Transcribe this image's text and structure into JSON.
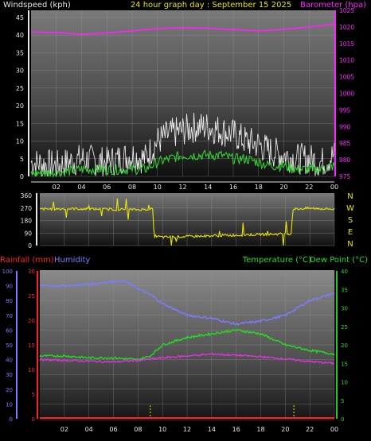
{
  "header": {
    "left_title": "Windspeed (kph)",
    "center_title": "24 hour graph day : September 15 2025",
    "right_title": "Barometer (hpa)"
  },
  "colors": {
    "background": "#000000",
    "wind_gust": "#e6e6e6",
    "wind_avg": "#33cc33",
    "barometer": "#ff22ff",
    "direction": "#e6e600",
    "humidity": "#7b7bff",
    "temperature": "#22dd22",
    "dewpoint": "#dd33dd",
    "rainfall": "#ff2020",
    "axis_left": "#7777ff",
    "axis_right": "#22cc22"
  },
  "compass": [
    "N",
    "W",
    "S",
    "E",
    "N"
  ],
  "bottom_header": {
    "rain_label": "Rainfall (mm)",
    "humidity_label": "Humidity",
    "temp_label": "Temperature (°C)",
    "dew_label": "Dew Point (°C)"
  },
  "chart_data": [
    {
      "type": "line",
      "panel": "wind_barometer",
      "x_ticks": [
        "02",
        "04",
        "06",
        "08",
        "10",
        "12",
        "14",
        "16",
        "18",
        "20",
        "22",
        "00"
      ],
      "y_left_ticks": [
        "0",
        "5",
        "10",
        "15",
        "20",
        "25",
        "30",
        "35",
        "40",
        "45"
      ],
      "y_right_ticks": [
        "975",
        "980",
        "985",
        "990",
        "995",
        "1000",
        "1005",
        "1010",
        "1015",
        "1020",
        "1025"
      ],
      "ylim_left": [
        0,
        47
      ],
      "ylim_right": [
        975,
        1025
      ],
      "series": [
        {
          "name": "Windspeed (kph)",
          "key": "gust",
          "x": [
            0,
            2,
            4,
            6,
            8,
            9,
            10,
            11,
            12,
            13,
            14,
            15,
            16,
            17,
            18,
            19,
            20,
            21,
            22,
            23,
            24
          ],
          "values": [
            4,
            3,
            5,
            4,
            6,
            5,
            10,
            12,
            13,
            14,
            14,
            13,
            12,
            10,
            9,
            7,
            6,
            5,
            5,
            4,
            6
          ]
        },
        {
          "name": "",
          "key": "avg",
          "x": [
            0,
            2,
            4,
            6,
            8,
            9,
            10,
            11,
            12,
            13,
            14,
            15,
            16,
            17,
            18,
            19,
            20,
            21,
            22,
            23,
            24
          ],
          "values": [
            1,
            1,
            2,
            2,
            2,
            2,
            4,
            5,
            6,
            6,
            6,
            6,
            5,
            5,
            4,
            3,
            3,
            2,
            2,
            2,
            3
          ]
        },
        {
          "name": "Barometer (hpa)",
          "key": "baro",
          "x": [
            0,
            2,
            4,
            6,
            8,
            10,
            12,
            14,
            16,
            18,
            20,
            22,
            24
          ],
          "values": [
            1018.5,
            1018.3,
            1017.8,
            1018.2,
            1018.8,
            1019.5,
            1019.8,
            1019.6,
            1019.2,
            1018.8,
            1019.3,
            1020.0,
            1020.8
          ]
        }
      ]
    },
    {
      "type": "line",
      "panel": "wind_direction",
      "y_ticks": [
        "0",
        "90",
        "180",
        "270",
        "360"
      ],
      "ylim": [
        0,
        360
      ],
      "series": [
        {
          "name": "",
          "key": "dir",
          "x": [
            0,
            3,
            6,
            8,
            9.2,
            9.3,
            10,
            12,
            14,
            16,
            18,
            20.5,
            20.6,
            22,
            24
          ],
          "values": [
            262,
            265,
            260,
            258,
            262,
            70,
            60,
            65,
            70,
            75,
            80,
            85,
            262,
            268,
            262
          ]
        }
      ]
    },
    {
      "type": "line",
      "panel": "temp_humidity",
      "y_left_rain_ticks": [
        "0",
        "5",
        "10",
        "15",
        "20",
        "25",
        "30"
      ],
      "y_left_hum_ticks": [
        "0",
        "10",
        "20",
        "30",
        "40",
        "50",
        "60",
        "70",
        "80",
        "90",
        "100"
      ],
      "y_right_ticks": [
        "0",
        "5",
        "10",
        "15",
        "20",
        "25",
        "30",
        "35",
        "40"
      ],
      "ylim_hum": [
        0,
        100
      ],
      "ylim_temp": [
        0,
        40
      ],
      "series": [
        {
          "name": "Humidity",
          "key": "hum",
          "x": [
            0,
            2,
            4,
            6,
            7,
            8,
            9,
            10,
            12,
            14,
            16,
            18,
            20,
            22,
            24
          ],
          "values": [
            90,
            90,
            91,
            93,
            93,
            88,
            84,
            78,
            70,
            68,
            64,
            66,
            70,
            80,
            85
          ]
        },
        {
          "name": "Temperature (°C)",
          "key": "temp",
          "x": [
            0,
            2,
            4,
            6,
            8,
            9,
            10,
            12,
            14,
            16,
            18,
            20,
            22,
            24
          ],
          "values": [
            17,
            17,
            16.5,
            16.5,
            16,
            17,
            20,
            22,
            23,
            24,
            23,
            20,
            18.5,
            17.5
          ]
        },
        {
          "name": "Dew Point (°C)",
          "key": "dew",
          "x": [
            0,
            2,
            4,
            6,
            8,
            10,
            12,
            14,
            16,
            18,
            20,
            22,
            24
          ],
          "values": [
            16,
            15.8,
            15.6,
            15.4,
            15.8,
            16.5,
            17,
            17.5,
            17.2,
            16.8,
            16.2,
            15.5,
            15
          ]
        },
        {
          "name": "Rainfall (mm)",
          "key": "rain",
          "x": [
            0,
            24
          ],
          "values": [
            0,
            0
          ]
        }
      ]
    }
  ]
}
